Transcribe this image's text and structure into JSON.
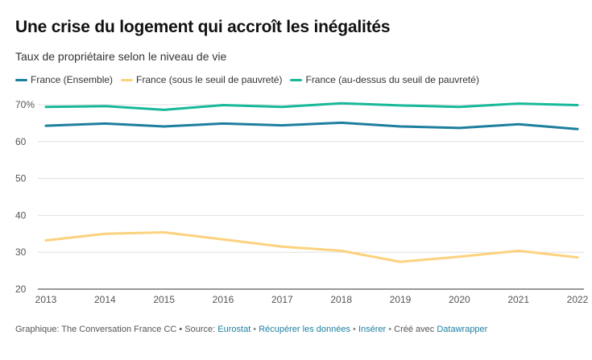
{
  "header": {
    "title": "Une crise du logement qui accroît les inégalités",
    "subtitle": "Taux de propriétaire selon le niveau de vie"
  },
  "footer": {
    "credit": "Graphique: The Conversation France CC • Source: ",
    "source_link": "Eurostat",
    "sep": " • ",
    "download_link": "Récupérer les données",
    "embed_link": "Insérer",
    "made_with": "Créé avec ",
    "tool_link": "Datawrapper"
  },
  "chart_data": {
    "type": "line",
    "title": "Une crise du logement qui accroît les inégalités",
    "subtitle": "Taux de propriétaire selon le niveau de vie",
    "x": [
      2013,
      2014,
      2015,
      2016,
      2017,
      2018,
      2019,
      2020,
      2021,
      2022
    ],
    "ylim": [
      20,
      70
    ],
    "yticks": [
      20,
      30,
      40,
      50,
      60,
      70
    ],
    "ytick_labels": [
      "20",
      "30",
      "40",
      "50",
      "60",
      "70%"
    ],
    "grid": true,
    "legend_position": "top-left",
    "series": [
      {
        "name": "France (Ensemble)",
        "color": "#1d7f9e",
        "values": [
          64.3,
          64.9,
          64.1,
          64.9,
          64.4,
          65.1,
          64.1,
          63.7,
          64.7,
          63.4
        ]
      },
      {
        "name": "France (sous le seuil de pauvreté)",
        "color": "#fcd27e",
        "values": [
          33.2,
          35.0,
          35.4,
          33.5,
          31.5,
          30.4,
          27.4,
          28.8,
          30.4,
          28.6
        ]
      },
      {
        "name": "France (au-dessus du seuil de pauvreté)",
        "color": "#18b89b",
        "values": [
          69.4,
          69.6,
          68.6,
          69.9,
          69.4,
          70.4,
          69.8,
          69.4,
          70.3,
          69.9
        ]
      }
    ]
  }
}
